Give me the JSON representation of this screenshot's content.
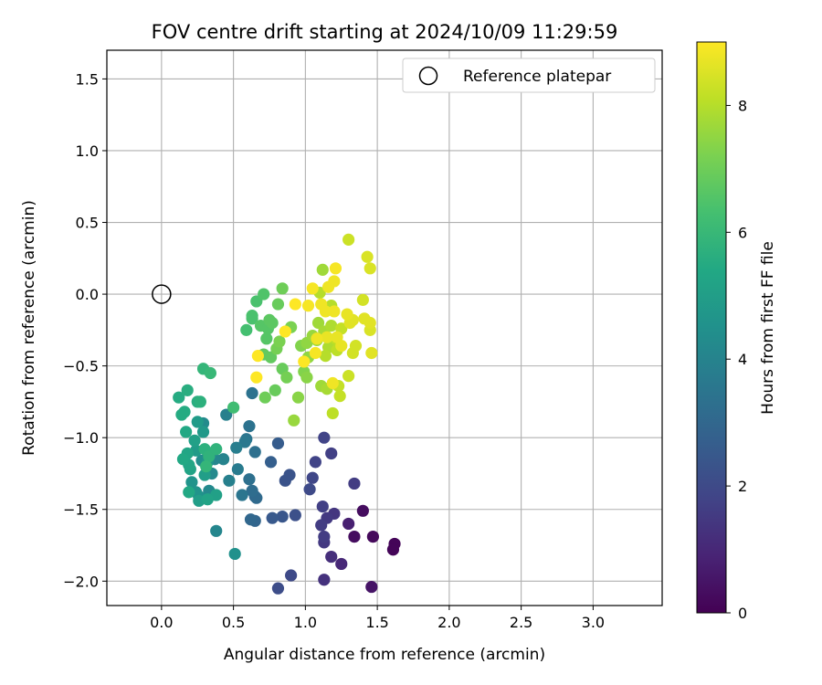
{
  "chart_data": {
    "type": "scatter",
    "title": "FOV centre drift starting at 2024/10/09 11:29:59",
    "xlabel": "Angular distance from reference (arcmin)",
    "ylabel": "Rotation from reference (arcmin)",
    "xlim": [
      -0.38,
      3.48
    ],
    "ylim": [
      -2.17,
      1.7
    ],
    "xticks": [
      "0.0",
      "0.5",
      "1.0",
      "1.5",
      "2.0",
      "2.5",
      "3.0"
    ],
    "yticks": [
      "−2.0",
      "−1.5",
      "−1.0",
      "−0.5",
      "0.0",
      "0.5",
      "1.0",
      "1.5"
    ],
    "xtick_values": [
      0,
      0.5,
      1.0,
      1.5,
      2.0,
      2.5,
      3.0
    ],
    "ytick_values": [
      -2.0,
      -1.5,
      -1.0,
      -0.5,
      0.0,
      0.5,
      1.0,
      1.5
    ],
    "grid": true,
    "colormap": "viridis",
    "colorbar": {
      "label": "Hours from first FF file",
      "range": [
        0,
        9
      ],
      "ticks": [
        "0",
        "2",
        "4",
        "6",
        "8"
      ],
      "tick_values": [
        0,
        2,
        4,
        6,
        8
      ]
    },
    "legend": {
      "position": "top-right",
      "entries": [
        "Reference platepar"
      ]
    },
    "reference_point": {
      "x": 0.0,
      "y": 0.0
    },
    "points": [
      [
        1.62,
        -1.74,
        0.1
      ],
      [
        1.61,
        -1.78,
        0.1
      ],
      [
        1.47,
        -1.69,
        0.2
      ],
      [
        1.34,
        -1.69,
        0.3
      ],
      [
        1.4,
        -1.51,
        0.3
      ],
      [
        1.46,
        -2.04,
        0.5
      ],
      [
        1.3,
        -1.6,
        0.8
      ],
      [
        1.25,
        -1.88,
        1.0
      ],
      [
        1.18,
        -1.83,
        1.2
      ],
      [
        1.13,
        -1.99,
        1.3
      ],
      [
        1.2,
        -1.53,
        1.4
      ],
      [
        1.15,
        -1.56,
        1.5
      ],
      [
        1.13,
        -1.73,
        1.5
      ],
      [
        1.11,
        -1.61,
        1.6
      ],
      [
        1.12,
        -1.48,
        1.7
      ],
      [
        1.13,
        -1.69,
        1.6
      ],
      [
        1.34,
        -1.32,
        1.6
      ],
      [
        1.18,
        -1.11,
        1.7
      ],
      [
        1.13,
        -1.0,
        1.8
      ],
      [
        1.07,
        -1.17,
        1.8
      ],
      [
        1.05,
        -1.28,
        1.9
      ],
      [
        1.03,
        -1.36,
        2.0
      ],
      [
        0.9,
        -1.96,
        2.0
      ],
      [
        0.81,
        -2.05,
        2.1
      ],
      [
        0.93,
        -1.54,
        2.2
      ],
      [
        0.89,
        -1.26,
        2.3
      ],
      [
        0.86,
        -1.3,
        2.3
      ],
      [
        0.84,
        -1.55,
        2.4
      ],
      [
        0.77,
        -1.56,
        2.5
      ],
      [
        0.81,
        -1.04,
        2.6
      ],
      [
        0.76,
        -1.17,
        2.7
      ],
      [
        0.65,
        -1.58,
        2.9
      ],
      [
        0.62,
        -1.57,
        3.0
      ],
      [
        0.65,
        -1.41,
        3.0
      ],
      [
        0.66,
        -1.42,
        3.1
      ],
      [
        0.63,
        -1.37,
        3.2
      ],
      [
        0.61,
        -1.29,
        3.3
      ],
      [
        0.65,
        -1.1,
        3.3
      ],
      [
        0.61,
        -0.92,
        3.4
      ],
      [
        0.63,
        -0.69,
        3.4
      ],
      [
        0.56,
        -1.4,
        3.5
      ],
      [
        0.59,
        -1.01,
        3.5
      ],
      [
        0.58,
        -1.03,
        3.6
      ],
      [
        0.53,
        -1.22,
        3.7
      ],
      [
        0.52,
        -1.07,
        3.8
      ],
      [
        0.47,
        -1.3,
        3.9
      ],
      [
        0.45,
        -0.84,
        3.9
      ],
      [
        0.43,
        -1.15,
        4.0
      ],
      [
        0.38,
        -1.65,
        4.1
      ],
      [
        0.37,
        -1.15,
        4.1
      ],
      [
        0.33,
        -1.37,
        4.2
      ],
      [
        0.35,
        -1.25,
        4.2
      ],
      [
        0.29,
        -0.9,
        4.3
      ],
      [
        0.28,
        -1.16,
        4.4
      ],
      [
        0.26,
        -1.41,
        4.5
      ],
      [
        0.24,
        -1.38,
        4.6
      ],
      [
        0.21,
        -1.31,
        4.6
      ],
      [
        0.51,
        -1.81,
        4.5
      ],
      [
        0.32,
        -1.17,
        4.7
      ],
      [
        0.29,
        -0.96,
        4.8
      ],
      [
        0.25,
        -0.89,
        4.9
      ],
      [
        0.24,
        -1.09,
        4.9
      ],
      [
        0.26,
        -1.44,
        5.0
      ],
      [
        0.3,
        -1.26,
        5.0
      ],
      [
        0.23,
        -1.02,
        5.1
      ],
      [
        0.38,
        -1.4,
        5.1
      ],
      [
        0.32,
        -1.43,
        5.2
      ],
      [
        0.2,
        -1.22,
        5.2
      ],
      [
        0.19,
        -1.19,
        5.3
      ],
      [
        0.18,
        -1.11,
        5.3
      ],
      [
        0.19,
        -1.38,
        5.4
      ],
      [
        0.17,
        -0.96,
        5.4
      ],
      [
        0.15,
        -1.15,
        5.4
      ],
      [
        0.16,
        -0.82,
        5.5
      ],
      [
        0.14,
        -0.84,
        5.5
      ],
      [
        0.12,
        -0.72,
        5.5
      ],
      [
        0.18,
        -0.67,
        5.6
      ],
      [
        0.25,
        -0.75,
        5.6
      ],
      [
        0.27,
        -0.75,
        5.7
      ],
      [
        0.3,
        -1.08,
        5.7
      ],
      [
        0.33,
        -1.13,
        5.8
      ],
      [
        0.38,
        -1.08,
        5.8
      ],
      [
        0.31,
        -1.2,
        5.9
      ],
      [
        0.29,
        -0.52,
        5.9
      ],
      [
        0.34,
        -0.55,
        6.0
      ],
      [
        0.5,
        -0.79,
        6.2
      ],
      [
        0.59,
        -0.25,
        6.3
      ],
      [
        0.63,
        -0.17,
        6.4
      ],
      [
        0.63,
        -0.15,
        6.4
      ],
      [
        0.66,
        -0.05,
        6.4
      ],
      [
        0.71,
        0.0,
        6.5
      ],
      [
        0.69,
        -0.22,
        6.6
      ],
      [
        0.73,
        -0.31,
        6.6
      ],
      [
        0.74,
        -0.24,
        6.6
      ],
      [
        0.77,
        -0.2,
        6.7
      ],
      [
        0.75,
        -0.18,
        6.7
      ],
      [
        0.71,
        -0.42,
        6.8
      ],
      [
        0.76,
        -0.44,
        6.8
      ],
      [
        0.81,
        -0.07,
        6.9
      ],
      [
        0.84,
        -0.52,
        6.9
      ],
      [
        0.79,
        -0.67,
        6.9
      ],
      [
        0.72,
        -0.72,
        7.0
      ],
      [
        0.84,
        0.04,
        7.0
      ],
      [
        0.87,
        -0.58,
        7.1
      ],
      [
        0.8,
        -0.38,
        7.1
      ],
      [
        0.82,
        -0.33,
        7.2
      ],
      [
        0.9,
        -0.23,
        7.2
      ],
      [
        0.97,
        -0.36,
        7.3
      ],
      [
        0.99,
        -0.54,
        7.3
      ],
      [
        0.95,
        -0.72,
        7.4
      ],
      [
        1.01,
        -0.58,
        7.4
      ],
      [
        1.01,
        -0.34,
        7.5
      ],
      [
        1.02,
        -0.44,
        7.5
      ],
      [
        0.92,
        -0.88,
        7.6
      ],
      [
        1.05,
        -0.29,
        7.6
      ],
      [
        1.08,
        -0.32,
        7.6
      ],
      [
        1.11,
        -0.64,
        7.7
      ],
      [
        1.09,
        -0.2,
        7.7
      ],
      [
        1.12,
        0.17,
        7.7
      ],
      [
        1.13,
        -0.26,
        7.8
      ],
      [
        1.15,
        -0.66,
        7.8
      ],
      [
        1.18,
        -0.22,
        7.9
      ],
      [
        1.2,
        -0.36,
        7.9
      ],
      [
        1.16,
        -0.37,
        7.9
      ],
      [
        1.1,
        0.01,
        8.0
      ],
      [
        1.14,
        -0.43,
        8.0
      ],
      [
        1.18,
        -0.08,
        8.0
      ],
      [
        1.21,
        -0.31,
        8.1
      ],
      [
        1.19,
        -0.83,
        8.1
      ],
      [
        1.22,
        -0.39,
        8.1
      ],
      [
        1.23,
        -0.64,
        8.2
      ],
      [
        1.24,
        -0.71,
        8.2
      ],
      [
        1.25,
        -0.24,
        8.2
      ],
      [
        1.3,
        0.38,
        8.3
      ],
      [
        1.3,
        -0.57,
        8.3
      ],
      [
        1.33,
        -0.41,
        8.4
      ],
      [
        1.35,
        -0.36,
        8.4
      ],
      [
        1.4,
        -0.04,
        8.4
      ],
      [
        1.43,
        0.26,
        8.5
      ],
      [
        1.45,
        0.18,
        8.5
      ],
      [
        1.45,
        -0.25,
        8.5
      ],
      [
        1.45,
        -0.2,
        8.6
      ],
      [
        1.41,
        -0.17,
        8.6
      ],
      [
        1.46,
        -0.41,
        8.6
      ],
      [
        1.33,
        -0.18,
        8.6
      ],
      [
        1.31,
        -0.2,
        8.6
      ],
      [
        1.29,
        -0.14,
        8.7
      ],
      [
        1.25,
        -0.36,
        8.7
      ],
      [
        1.22,
        -0.3,
        8.7
      ],
      [
        1.15,
        -0.3,
        8.7
      ],
      [
        1.19,
        -0.62,
        8.8
      ],
      [
        1.11,
        -0.07,
        8.8
      ],
      [
        1.2,
        -0.12,
        8.8
      ],
      [
        1.2,
        0.09,
        8.8
      ],
      [
        1.16,
        0.05,
        8.8
      ],
      [
        1.14,
        -0.12,
        8.8
      ],
      [
        1.08,
        -0.31,
        8.8
      ],
      [
        1.07,
        -0.41,
        8.9
      ],
      [
        1.05,
        0.04,
        8.9
      ],
      [
        1.21,
        0.18,
        8.9
      ],
      [
        1.02,
        -0.08,
        8.9
      ],
      [
        0.93,
        -0.07,
        9.0
      ],
      [
        0.99,
        -0.47,
        9.0
      ],
      [
        0.86,
        -0.26,
        9.0
      ],
      [
        0.67,
        -0.43,
        9.0
      ],
      [
        0.66,
        -0.58,
        9.0
      ]
    ]
  }
}
